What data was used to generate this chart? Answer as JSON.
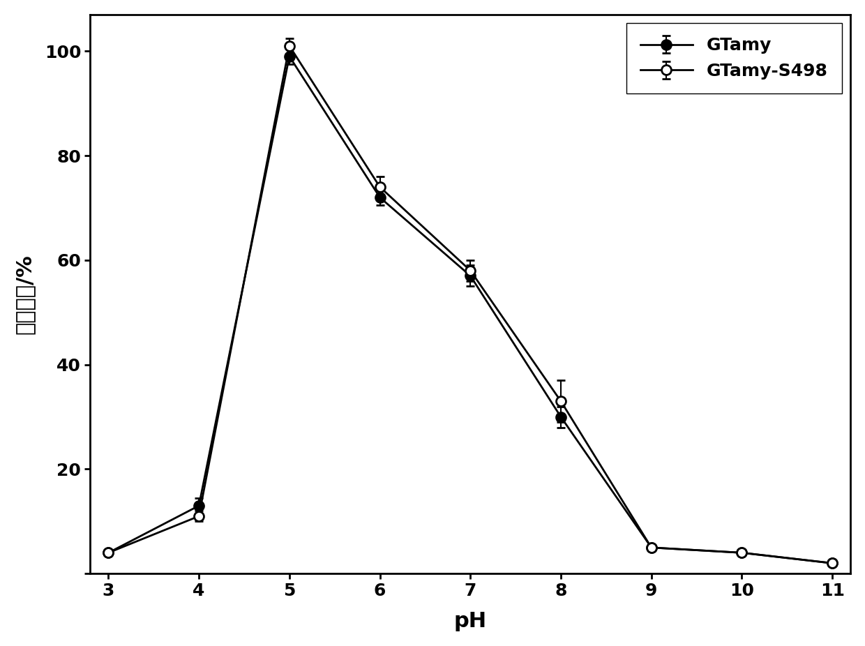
{
  "ph_values": [
    3,
    4,
    5,
    6,
    7,
    8,
    9,
    10,
    11
  ],
  "gtamy_y": [
    4,
    13,
    99,
    72,
    57,
    30,
    5,
    4,
    2
  ],
  "gtamy_yerr": [
    0.5,
    1.5,
    1.5,
    1.5,
    2,
    2,
    0.5,
    0.5,
    0.3
  ],
  "gtamy_s498_y": [
    4,
    11,
    101,
    74,
    58,
    33,
    5,
    4,
    2
  ],
  "gtamy_s498_yerr": [
    0.5,
    1,
    1.5,
    2,
    2,
    4,
    0.5,
    0.5,
    0.3
  ],
  "xlabel": "pH",
  "ylabel": "相对酶活/%",
  "xlim": [
    2.8,
    11.2
  ],
  "ylim": [
    0,
    107
  ],
  "xticks": [
    3,
    4,
    5,
    6,
    7,
    8,
    9,
    10,
    11
  ],
  "yticks": [
    0,
    20,
    40,
    60,
    80,
    100
  ],
  "legend_labels": [
    "GTamy",
    "GTamy-S498"
  ],
  "line_color": "#000000",
  "marker_size": 10,
  "line_width": 2.0,
  "tick_fontsize": 18,
  "label_fontsize": 22,
  "legend_fontsize": 18,
  "background_color": "#ffffff"
}
